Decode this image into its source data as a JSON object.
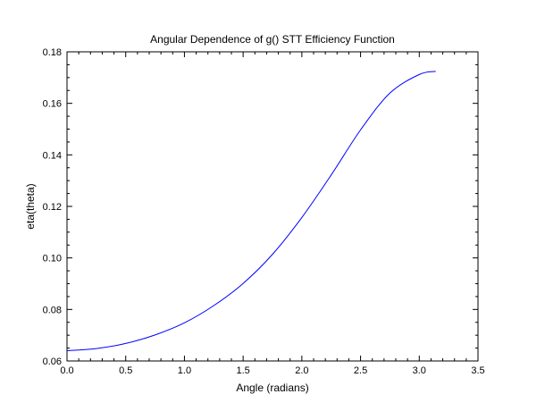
{
  "chart_data": {
    "type": "line",
    "title": "Angular Dependence of g() STT Efficiency Function",
    "xlabel": "Angle (radians)",
    "ylabel": "eta(theta)",
    "xlim": [
      0.0,
      3.5
    ],
    "ylim": [
      0.06,
      0.18
    ],
    "xticks": [
      "0.0",
      "0.5",
      "1.0",
      "1.5",
      "2.0",
      "2.5",
      "3.0",
      "3.5"
    ],
    "yticks": [
      "0.06",
      "0.08",
      "0.10",
      "0.12",
      "0.14",
      "0.16",
      "0.18"
    ],
    "grid": false,
    "legend": "none",
    "series": [
      {
        "color": "#0000ff",
        "x": [
          0.0,
          0.25,
          0.5,
          0.75,
          1.0,
          1.25,
          1.5,
          1.75,
          2.0,
          2.25,
          2.5,
          2.75,
          3.0,
          3.14
        ],
        "y": [
          0.064,
          0.0648,
          0.0668,
          0.0701,
          0.0748,
          0.0815,
          0.0901,
          0.1014,
          0.1157,
          0.1322,
          0.1497,
          0.164,
          0.1712,
          0.1724
        ]
      }
    ]
  }
}
